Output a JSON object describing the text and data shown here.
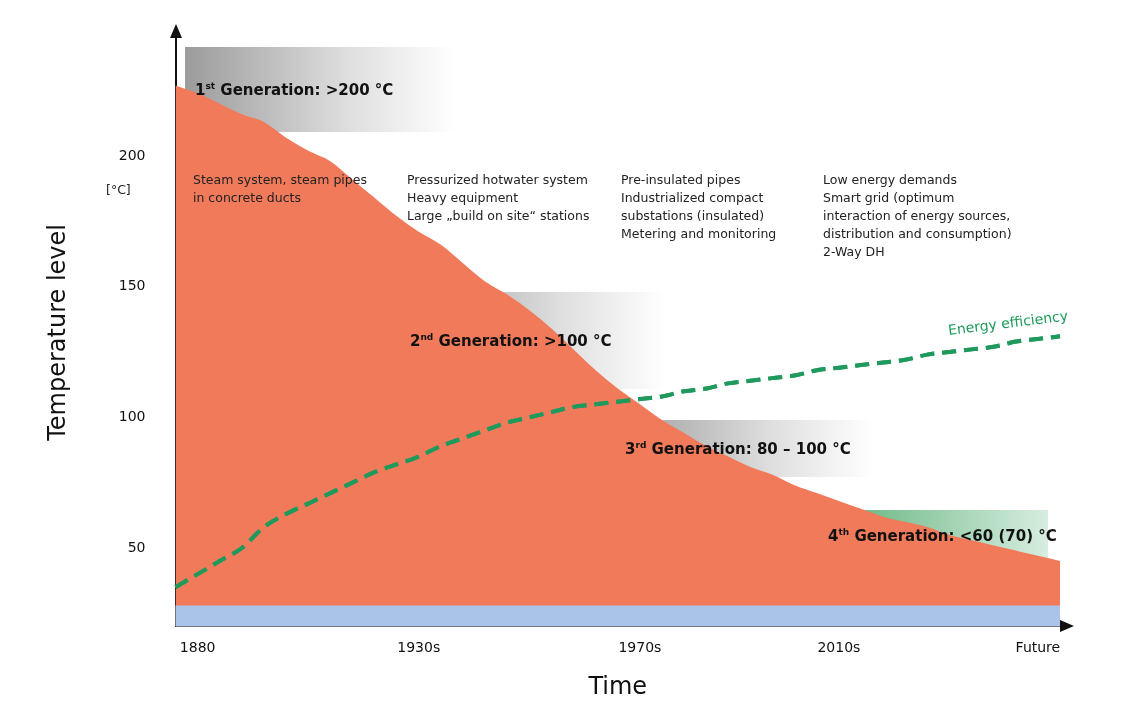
{
  "chart_data": {
    "type": "area",
    "xlabel": "Time",
    "ylabel": "Temperature level",
    "categories": [
      null,
      "1880",
      null,
      null,
      null,
      null,
      null,
      null,
      null,
      null,
      null,
      "1930s",
      null,
      null,
      null,
      null,
      null,
      null,
      null,
      null,
      null,
      "1970s",
      null,
      null,
      null,
      null,
      null,
      null,
      null,
      null,
      "2010s",
      null,
      null,
      null,
      null,
      null,
      null,
      null,
      null,
      "Future",
      null
    ],
    "series": [
      {
        "color": "#f07a5a",
        "values": [
          227,
          224,
          220,
          216,
          213,
          207,
          202,
          198,
          191,
          184,
          177,
          171,
          166,
          159,
          152,
          147,
          141,
          134,
          126,
          118,
          111,
          105,
          99,
          94,
          89,
          85,
          81,
          78,
          74,
          71,
          68,
          65,
          62,
          60,
          58,
          55,
          53,
          51,
          49,
          47,
          45
        ]
      },
      {
        "type": "line",
        "name": "Energy efficiency",
        "color": "#1f9a5c",
        "line_style": "dashed",
        "values": [
          35,
          40,
          45,
          50,
          58,
          63,
          67,
          71,
          75,
          79,
          82,
          85,
          89,
          92,
          95,
          98,
          100,
          102,
          104,
          105,
          106,
          107,
          108,
          110,
          111,
          113,
          114,
          115,
          116,
          118,
          119,
          120,
          121,
          122,
          124,
          125,
          126,
          127,
          129,
          130,
          131
        ]
      }
    ],
    "ylim": [
      20,
      245
    ],
    "yticks": [
      50,
      100,
      150,
      200
    ],
    "bands": [
      {
        "axis": "y",
        "from": 20,
        "to": 28,
        "color": "#a9c4e8"
      }
    ],
    "grid": false,
    "legend": false,
    "marker": "none",
    "annotations": [
      "1$^{st}$ Generation: >200 °C",
      "2$^{nd}$ Generation: >100 °C",
      "3$^{rd}$ Generation: 80 – 100 °C",
      "4$^{th}$ Generation: <60 (70) °C",
      "Steam system, steam pipes\nin concrete ducts",
      "Pressurized hotwater system\nHeavy equipment\nLarge „build on site“ stations",
      "Pre-insulated pipes\nIndustrialized compact\nsubstations (insulated)\nMetering and monitoring",
      "Low energy demands\nSmart grid (optimum\ninteraction of energy sources,\ndistribution and consumption)\n2-Way DH",
      "[°C]"
    ]
  }
}
